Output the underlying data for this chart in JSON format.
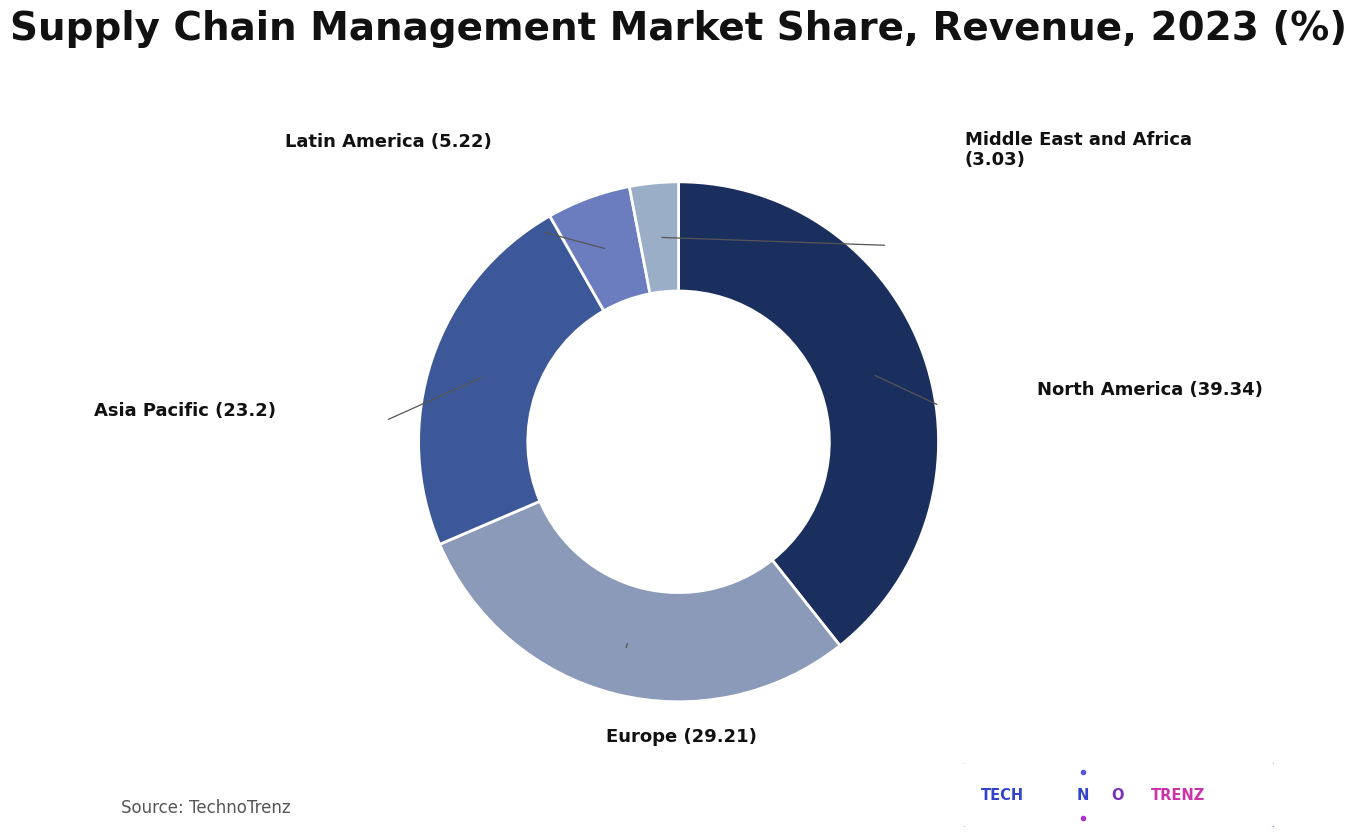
{
  "title": "Supply Chain Management Market Share, Revenue, 2023 (%)",
  "source_text": "Source: TechnoTrenz",
  "segments": [
    {
      "label": "North America",
      "value": 39.34,
      "color": "#1b2f5f"
    },
    {
      "label": "Europe",
      "value": 29.21,
      "color": "#8a9ab8"
    },
    {
      "label": "Asia Pacific",
      "value": 23.2,
      "color": "#3d5899"
    },
    {
      "label": "Latin America",
      "value": 5.22,
      "color": "#6b7dbf"
    },
    {
      "label": "Middle East and Africa",
      "value": 3.03,
      "color": "#9aaec8"
    }
  ],
  "background_color": "#ffffff",
  "title_fontsize": 28,
  "label_fontsize": 13,
  "source_fontsize": 12,
  "donut_width": 0.42,
  "start_angle": 90
}
